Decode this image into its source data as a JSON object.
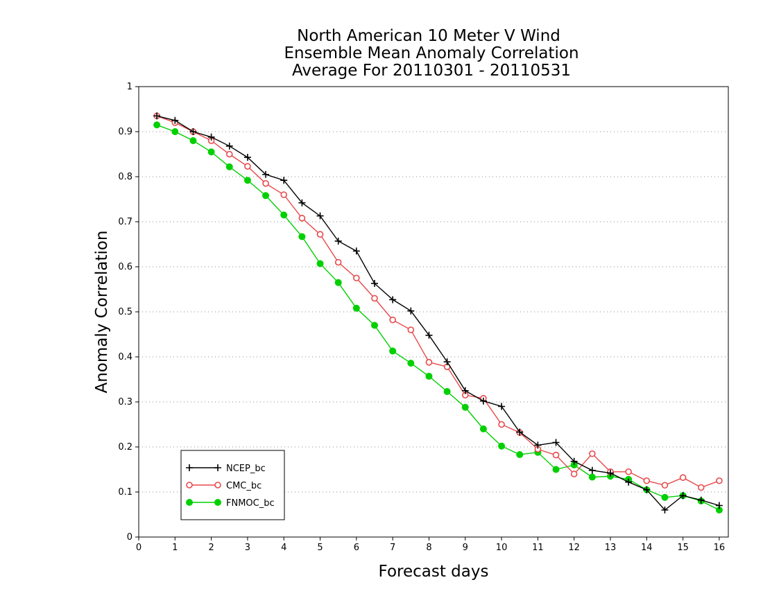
{
  "chart_data": {
    "type": "line",
    "title": [
      "North American 10 Meter V Wind",
      "Ensemble Mean Anomaly Correlation",
      "Average For 20110301 - 20110531"
    ],
    "xlabel": "Forecast days",
    "ylabel": "Anomaly Correlation",
    "xlim": [
      0,
      16.25
    ],
    "ylim": [
      0,
      1
    ],
    "xticks": [
      "0",
      "1",
      "2",
      "3",
      "4",
      "5",
      "6",
      "7",
      "8",
      "9",
      "10",
      "11",
      "12",
      "13",
      "14",
      "15",
      "16"
    ],
    "yticks": [
      "0",
      "0.1",
      "0.2",
      "0.3",
      "0.4",
      "0.5",
      "0.6",
      "0.7",
      "0.8",
      "0.9",
      "1"
    ],
    "grid": "horizontal-dotted",
    "legend_position": "bottom-left",
    "x": [
      0.5,
      1,
      1.5,
      2,
      2.5,
      3,
      3.5,
      4,
      4.5,
      5,
      5.5,
      6,
      6.5,
      7,
      7.5,
      8,
      8.5,
      9,
      9.5,
      10,
      10.5,
      11,
      11.5,
      12,
      12.5,
      13,
      13.5,
      14,
      14.5,
      15,
      15.5,
      16
    ],
    "series": [
      {
        "name": "NCEP_bc",
        "color": "#000000",
        "marker": "plus",
        "values": [
          0.935,
          0.925,
          0.9,
          0.888,
          0.868,
          0.843,
          0.805,
          0.792,
          0.742,
          0.713,
          0.657,
          0.635,
          0.563,
          0.527,
          0.502,
          0.448,
          0.389,
          0.325,
          0.302,
          0.29,
          0.233,
          0.204,
          0.21,
          0.168,
          0.148,
          0.142,
          0.122,
          0.105,
          0.06,
          0.092,
          0.082,
          0.07
        ]
      },
      {
        "name": "CMC_bc",
        "color": "#e8484a",
        "marker": "open-circle",
        "values": [
          0.935,
          0.92,
          0.9,
          0.88,
          0.85,
          0.823,
          0.785,
          0.76,
          0.708,
          0.672,
          0.61,
          0.575,
          0.53,
          0.482,
          0.46,
          0.388,
          0.378,
          0.315,
          0.308,
          0.25,
          0.232,
          0.195,
          0.182,
          0.14,
          0.185,
          0.145,
          0.145,
          0.125,
          0.115,
          0.132,
          0.11,
          0.125
        ]
      },
      {
        "name": "FNMOC_bc",
        "color": "#00d000",
        "marker": "filled-circle",
        "values": [
          0.915,
          0.9,
          0.88,
          0.855,
          0.822,
          0.792,
          0.758,
          0.715,
          0.667,
          0.607,
          0.565,
          0.508,
          0.47,
          0.413,
          0.386,
          0.357,
          0.323,
          0.288,
          0.24,
          0.202,
          0.183,
          0.188,
          0.15,
          0.16,
          0.133,
          0.135,
          0.128,
          0.105,
          0.088,
          0.092,
          0.08,
          0.06
        ]
      }
    ]
  }
}
